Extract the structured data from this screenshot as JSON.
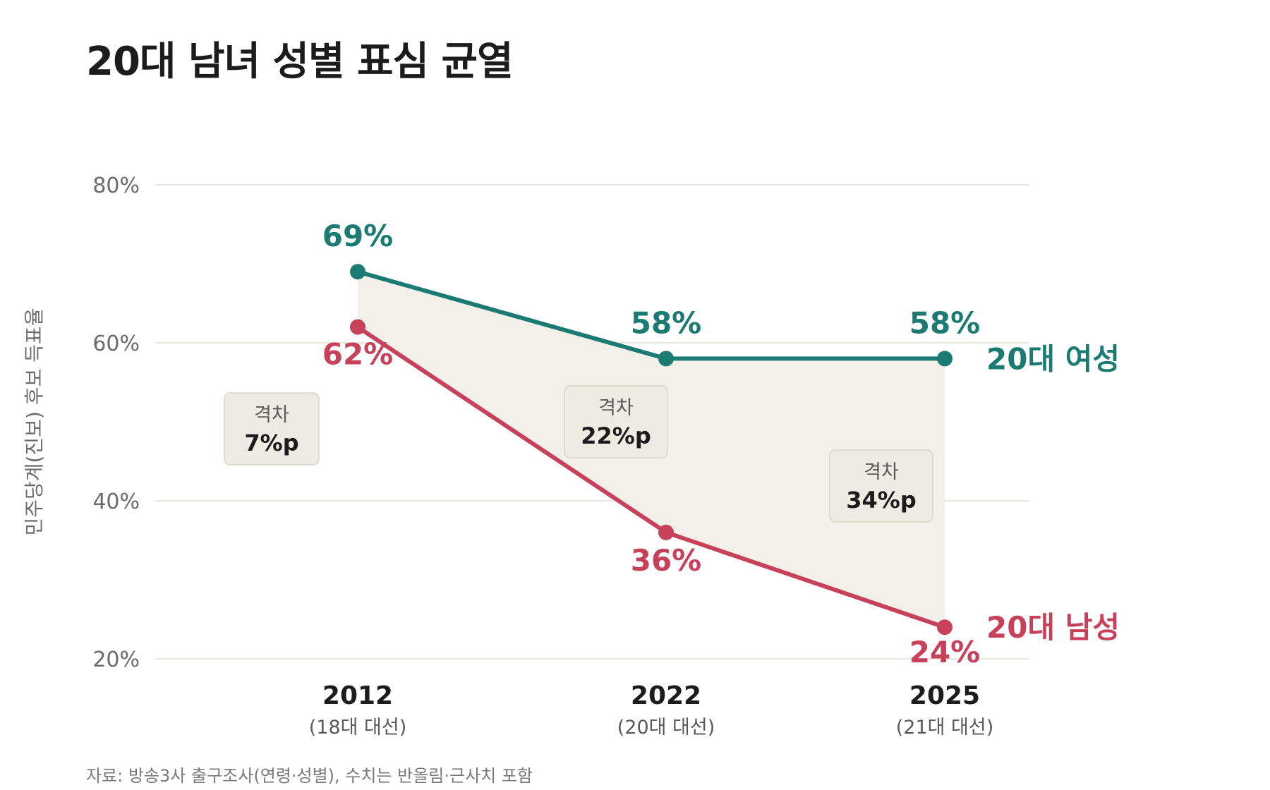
{
  "title": "20대 남녀 성별 표심 균열",
  "source": "자료: 방송3사 출구조사(연령·성별), 수치는 반올림·근사치 포함",
  "colors": {
    "female": "#1b7b72",
    "male": "#c8415a",
    "band": "#f3f0ea",
    "box_fill": "#eeebe3",
    "box_stroke": "#d9d4c7",
    "grid": "#e2ded5"
  },
  "chart_data": {
    "type": "line",
    "title": "20대 남녀 성별 표심 균열",
    "ylabel": "민주당계(진보) 후보 득표율",
    "ylim": [
      20,
      80
    ],
    "yticks": [
      20,
      40,
      60,
      80
    ],
    "ytick_labels": [
      "20%",
      "40%",
      "60%",
      "80%"
    ],
    "grid": true,
    "categories": [
      "2012",
      "2022",
      "2025"
    ],
    "category_sublabels": [
      "(18대 대선)",
      "(20대 대선)",
      "(21대 대선)"
    ],
    "series": [
      {
        "name": "20대 여성",
        "color": "#1b7b72",
        "values": [
          69,
          58,
          58
        ],
        "labels": [
          "69%",
          "58%",
          "58%"
        ]
      },
      {
        "name": "20대 남성",
        "color": "#c8415a",
        "values": [
          62,
          36,
          24
        ],
        "labels": [
          "62%",
          "36%",
          "24%"
        ]
      }
    ],
    "gap_annotations": [
      {
        "label": "격차",
        "value": "7%p"
      },
      {
        "label": "격차",
        "value": "22%p"
      },
      {
        "label": "격차",
        "value": "34%p"
      }
    ]
  }
}
